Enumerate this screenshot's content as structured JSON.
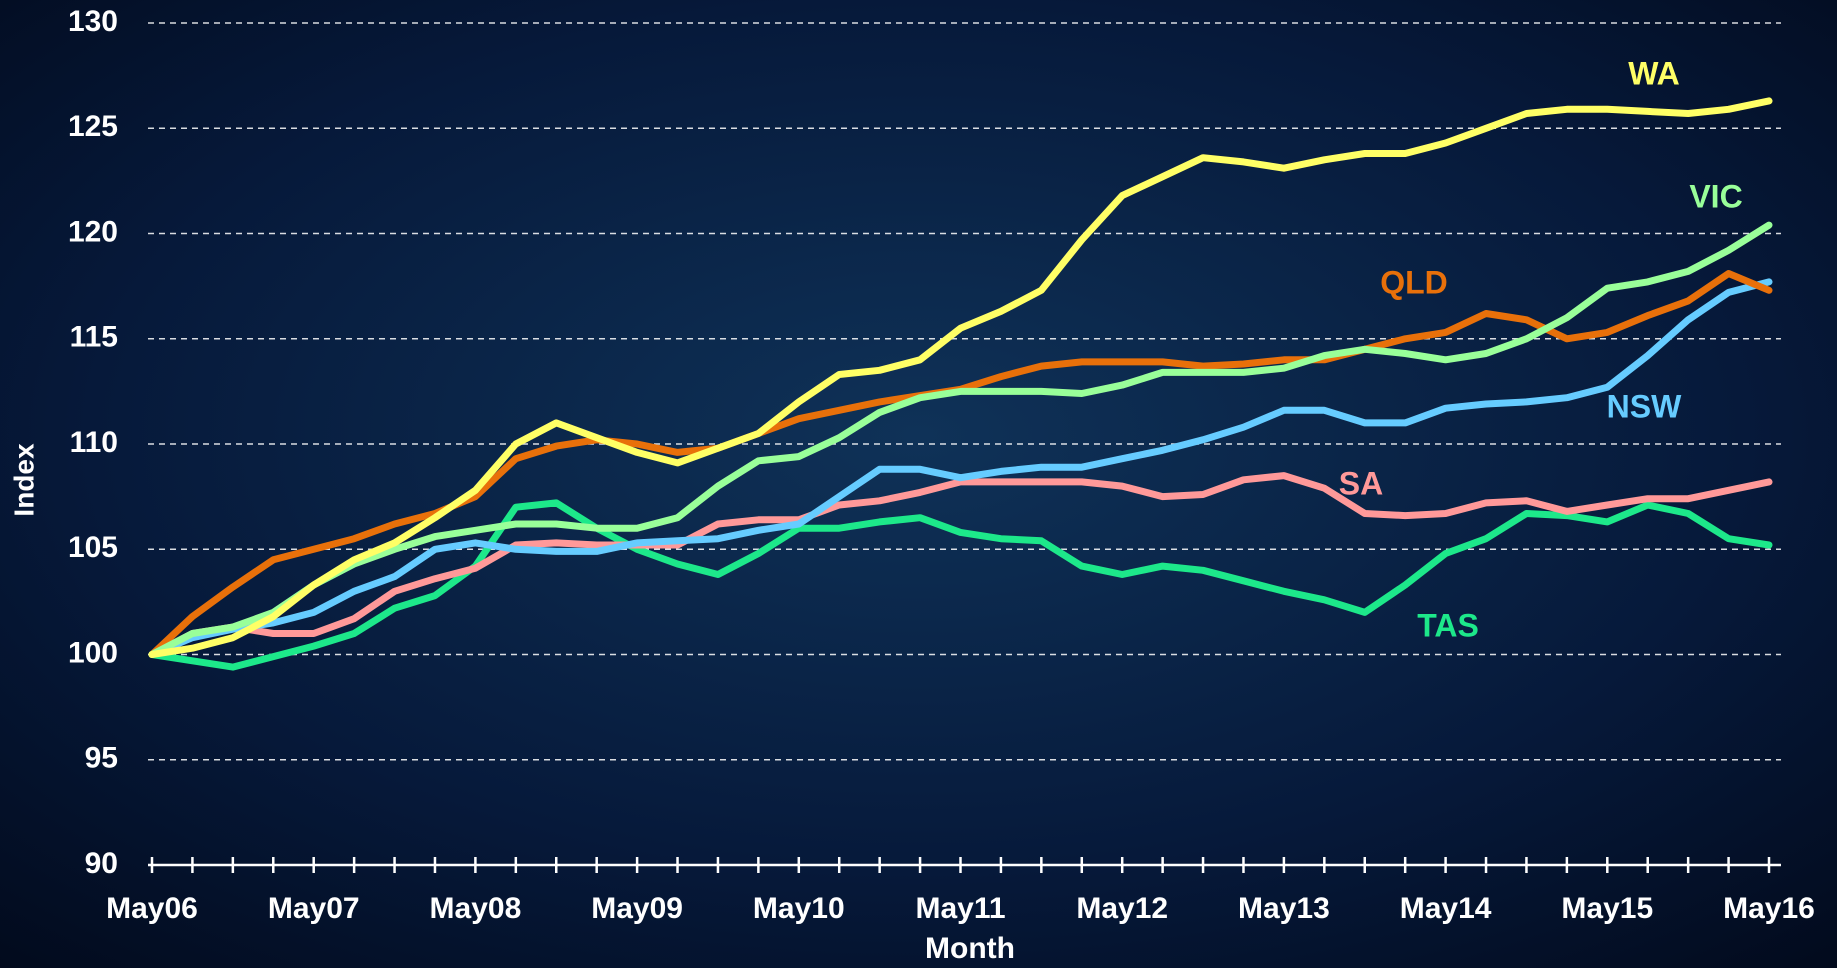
{
  "chart_data": {
    "type": "line",
    "x_label": "Month",
    "y_label": "Index",
    "categories": [
      "May06",
      null,
      null,
      null,
      "May07",
      null,
      null,
      null,
      "May08",
      null,
      null,
      null,
      "May09",
      null,
      null,
      null,
      "May10",
      null,
      null,
      null,
      "May11",
      null,
      null,
      null,
      "May12",
      null,
      null,
      null,
      "May13",
      null,
      null,
      null,
      "May14",
      null,
      null,
      null,
      "May15",
      null,
      null,
      null,
      "May16"
    ],
    "ylim": [
      90,
      130
    ],
    "yticks": [
      90,
      95,
      100,
      105,
      110,
      115,
      120,
      125,
      130
    ],
    "grid": true,
    "series": [
      {
        "name": "WA",
        "color": "#ffff66",
        "values": [
          100,
          100.3,
          100.8,
          101.8,
          103.3,
          104.5,
          105.3,
          106.5,
          107.8,
          110.0,
          111.0,
          110.3,
          109.6,
          109.1,
          109.8,
          110.5,
          112.0,
          113.3,
          113.5,
          114.0,
          115.5,
          116.3,
          117.3,
          119.7,
          121.8,
          122.7,
          123.6,
          123.4,
          123.1,
          123.5,
          123.8,
          123.8,
          124.3,
          125.0,
          125.7,
          125.9,
          125.9,
          125.8,
          125.7,
          125.9,
          126.3
        ]
      },
      {
        "name": "VIC",
        "color": "#99ff99",
        "values": [
          100,
          101.0,
          101.3,
          102.0,
          103.3,
          104.3,
          105.0,
          105.6,
          105.9,
          106.2,
          106.2,
          106.0,
          106.0,
          106.5,
          108.0,
          109.2,
          109.4,
          110.3,
          111.5,
          112.2,
          112.5,
          112.5,
          112.5,
          112.4,
          112.8,
          113.4,
          113.4,
          113.4,
          113.6,
          114.2,
          114.5,
          114.3,
          114.0,
          114.3,
          115.0,
          116.0,
          117.4,
          117.7,
          118.2,
          119.2,
          120.4
        ]
      },
      {
        "name": "QLD",
        "color": "#e8700a",
        "values": [
          100,
          101.8,
          103.2,
          104.5,
          105.0,
          105.5,
          106.2,
          106.7,
          107.5,
          109.3,
          109.9,
          110.2,
          110.0,
          109.6,
          109.8,
          110.5,
          111.2,
          111.6,
          112.0,
          112.3,
          112.6,
          113.2,
          113.7,
          113.9,
          113.9,
          113.9,
          113.7,
          113.8,
          114.0,
          114.0,
          114.5,
          115.0,
          115.3,
          116.2,
          115.9,
          115.0,
          115.3,
          116.1,
          116.8,
          118.1,
          117.3
        ]
      },
      {
        "name": "NSW",
        "color": "#66ccff",
        "values": [
          100,
          100.8,
          101.2,
          101.5,
          102.0,
          103.0,
          103.7,
          105.0,
          105.3,
          105.0,
          104.9,
          104.9,
          105.3,
          105.4,
          105.5,
          105.9,
          106.2,
          107.5,
          108.8,
          108.8,
          108.4,
          108.7,
          108.9,
          108.9,
          109.3,
          109.7,
          110.2,
          110.8,
          111.6,
          111.6,
          111.0,
          111.0,
          111.7,
          111.9,
          112.0,
          112.2,
          112.7,
          114.2,
          115.9,
          117.2,
          117.7
        ]
      },
      {
        "name": "SA",
        "color": "#ff9999",
        "values": [
          100,
          101.0,
          101.3,
          101.0,
          101.0,
          101.7,
          103.0,
          103.6,
          104.1,
          105.2,
          105.3,
          105.2,
          105.2,
          105.2,
          106.2,
          106.4,
          106.4,
          107.1,
          107.3,
          107.7,
          108.2,
          108.2,
          108.2,
          108.2,
          108.0,
          107.5,
          107.6,
          108.3,
          108.5,
          107.9,
          106.7,
          106.6,
          106.7,
          107.2,
          107.3,
          106.8,
          107.1,
          107.4,
          107.4,
          107.8,
          108.2
        ]
      },
      {
        "name": "TAS",
        "color": "#1de88a",
        "values": [
          100,
          99.7,
          99.4,
          99.9,
          100.4,
          101.0,
          102.2,
          102.8,
          104.2,
          107.0,
          107.2,
          106.0,
          105.0,
          104.3,
          103.8,
          104.8,
          106.0,
          106.0,
          106.3,
          106.5,
          105.8,
          105.5,
          105.4,
          104.2,
          103.8,
          104.2,
          104.0,
          103.5,
          103.0,
          102.6,
          102.0,
          103.3,
          104.8,
          105.5,
          106.7,
          106.6,
          106.3,
          107.1,
          106.7,
          105.5,
          105.2
        ]
      }
    ]
  }
}
